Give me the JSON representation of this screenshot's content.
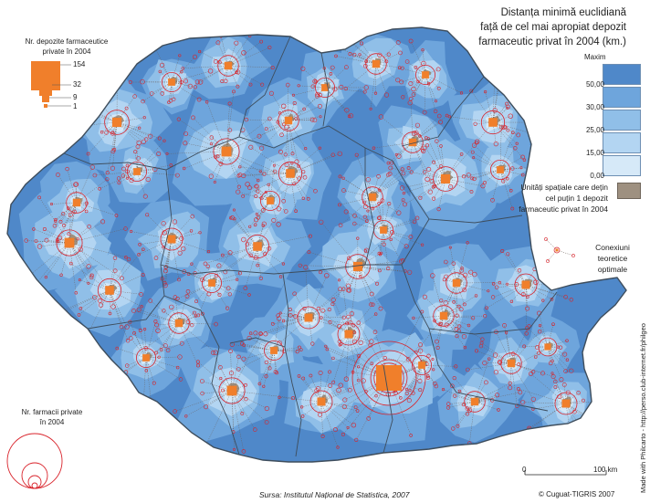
{
  "title": {
    "line1": "Distanța minimă euclidiană",
    "line2": "față de cel mai apropiat depozit",
    "line3": "farmaceutic privat în 2004 (km.)"
  },
  "distance_legend": {
    "max_label": "Maxim",
    "classes": [
      {
        "label": "50,00",
        "color": "#4f88c9"
      },
      {
        "label": "30,00",
        "color": "#6ea5dc"
      },
      {
        "label": "25,00",
        "color": "#90bfe8"
      },
      {
        "label": "15,00",
        "color": "#b3d5f2"
      },
      {
        "label": "0,00",
        "color": "#d6e9f8"
      }
    ]
  },
  "units_legend": {
    "line1": "Unități spațiale care dețin",
    "line2": "cel puțin 1 depozit",
    "line3": "farmaceutic privat în 2004",
    "color": "#9e9080"
  },
  "connections_legend": {
    "line1": "Conexiuni teoretice",
    "line2": "optimale"
  },
  "depots_legend": {
    "line1": "Nr. depozite farmaceutice",
    "line2": "private în 2004",
    "values": [
      "154",
      "32",
      "9",
      "1"
    ],
    "color": "#f07f2b"
  },
  "pharmacies_legend": {
    "line1": "Nr. farmacii private",
    "line2": "în 2004",
    "circle_color": "#d9232b"
  },
  "scale_bar": {
    "start": "0",
    "end": "100 km"
  },
  "source": "Sursa: Institutul Național de Statistica, 2007",
  "copyright": "© Cuguat-TIGRIS 2007",
  "credit": "Made with Philcarto - http://perso.club-internet.fr/philgeo",
  "map_colors": {
    "background": "#ffffff",
    "border": "#3e4d5c",
    "connection": "#6b5a52",
    "point": "#d9232b",
    "depot": "#f07f2b"
  }
}
